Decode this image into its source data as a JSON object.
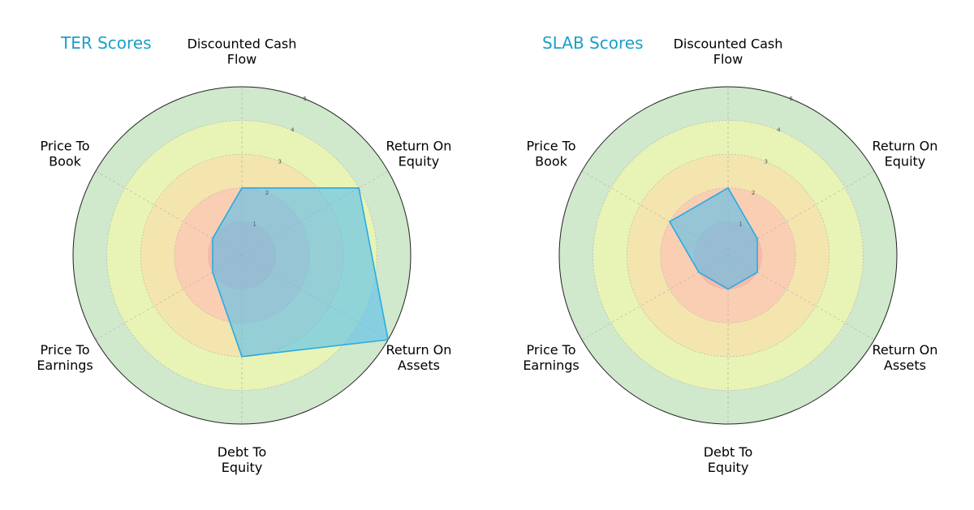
{
  "chart_data": [
    {
      "type": "radar",
      "title": "TER Scores",
      "axes": [
        "Discounted Cash Flow",
        "Return On Equity",
        "Return On Assets",
        "Debt To Equity",
        "Price To Earnings",
        "Price To Book"
      ],
      "axis_label_lines": [
        [
          "Discounted Cash",
          "Flow"
        ],
        [
          "Return On",
          "Equity"
        ],
        [
          "Return On",
          "Assets"
        ],
        [
          "Debt To",
          "Equity"
        ],
        [
          "Price To",
          "Earnings"
        ],
        [
          "Price To",
          "Book"
        ]
      ],
      "values": [
        2,
        4,
        5,
        3,
        1,
        1
      ],
      "rlim": [
        0,
        5
      ],
      "r_ticks": [
        1,
        2,
        3,
        4,
        5
      ]
    },
    {
      "type": "radar",
      "title": "SLAB Scores",
      "axes": [
        "Discounted Cash Flow",
        "Return On Equity",
        "Return On Assets",
        "Debt To Equity",
        "Price To Earnings",
        "Price To Book"
      ],
      "axis_label_lines": [
        [
          "Discounted Cash",
          "Flow"
        ],
        [
          "Return On",
          "Equity"
        ],
        [
          "Return On",
          "Assets"
        ],
        [
          "Debt To",
          "Equity"
        ],
        [
          "Price To",
          "Earnings"
        ],
        [
          "Price To",
          "Book"
        ]
      ],
      "values": [
        2,
        1,
        1,
        1,
        1,
        2
      ],
      "rlim": [
        0,
        5
      ],
      "r_ticks": [
        1,
        2,
        3,
        4,
        5
      ]
    }
  ],
  "style": {
    "title_color": "#1a9fc9",
    "series_fill": "#5bc0eb",
    "series_stroke": "#29abe2",
    "ring_colors": [
      "#ff9e9e",
      "#ffb7b7",
      "#ffd4a8",
      "#ffff9e",
      "#a9d6a3"
    ],
    "grid_color": "#b0b0b0",
    "outer_circle_color": "#222222"
  }
}
